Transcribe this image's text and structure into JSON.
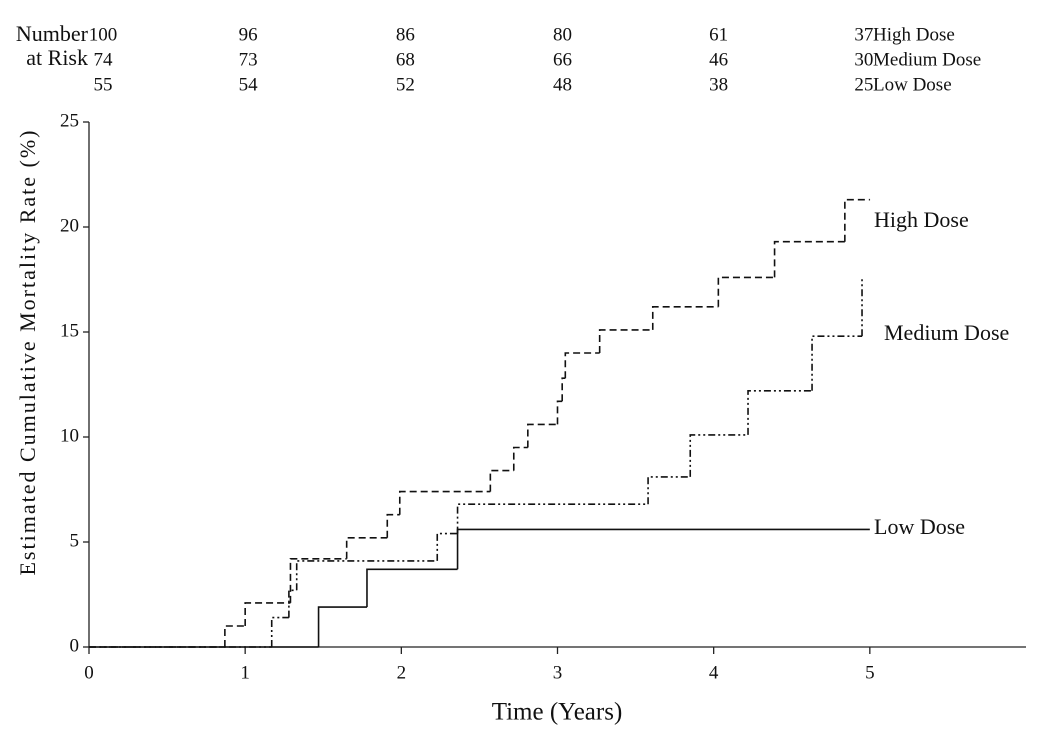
{
  "chart_data": {
    "type": "step",
    "x_label": "Time (Years)",
    "y_label": "Estimated Cumulative Mortality Rate (%)",
    "risk_label": [
      "Number",
      "at Risk"
    ],
    "xlim": [
      0,
      6
    ],
    "ylim": [
      0,
      25
    ],
    "xticks": [
      0,
      1,
      2,
      3,
      4,
      5
    ],
    "yticks": [
      0,
      5,
      10,
      15,
      20,
      25
    ],
    "series": [
      {
        "name": "High Dose",
        "color": "#111111",
        "line_style": "dashed",
        "at_risk": [
          100,
          96,
          86,
          80,
          61,
          37
        ],
        "x": [
          0,
          0.87,
          1.0,
          1.29,
          1.65,
          1.91,
          1.99,
          2.57,
          2.72,
          2.81,
          3.0,
          3.03,
          3.05,
          3.27,
          3.61,
          4.03,
          4.39,
          4.84,
          5.0
        ],
        "values": [
          0,
          1.0,
          2.1,
          4.2,
          5.2,
          6.3,
          7.4,
          8.4,
          9.5,
          10.6,
          11.7,
          12.8,
          14.0,
          15.1,
          16.2,
          17.6,
          19.3,
          21.3,
          21.3
        ]
      },
      {
        "name": "Medium Dose",
        "color": "#111111",
        "line_style": "dash-dot-dot",
        "at_risk": [
          74,
          73,
          68,
          66,
          46,
          30
        ],
        "x": [
          0,
          1.17,
          1.28,
          1.33,
          2.23,
          2.36,
          3.58,
          3.85,
          4.22,
          4.63,
          4.95
        ],
        "values": [
          0,
          1.4,
          2.7,
          4.1,
          5.4,
          6.8,
          8.1,
          10.1,
          12.2,
          14.8,
          17.6
        ]
      },
      {
        "name": "Low Dose",
        "color": "#111111",
        "line_style": "solid",
        "at_risk": [
          55,
          54,
          52,
          48,
          38,
          25
        ],
        "x": [
          0,
          1.47,
          1.78,
          2.36,
          5.0
        ],
        "values": [
          0,
          1.9,
          3.7,
          5.6,
          5.6
        ]
      }
    ]
  }
}
